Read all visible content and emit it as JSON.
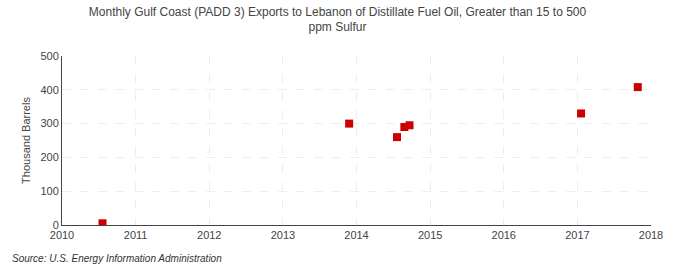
{
  "chart_data": {
    "type": "scatter",
    "title": "Monthly Gulf Coast (PADD 3) Exports to Lebanon of Distillate Fuel Oil, Greater than 15 to 500\nppm Sulfur",
    "ylabel": "Thousand Barrels",
    "annotations": [
      "Source: U.S. Energy Information Administration"
    ],
    "x": [
      2010.55,
      2013.9,
      2014.55,
      2014.65,
      2014.72,
      2017.05,
      2017.82
    ],
    "values": [
      5,
      300,
      260,
      290,
      295,
      330,
      408
    ],
    "color": "#cc0000",
    "marker": "square",
    "xlim": [
      2010,
      2018
    ],
    "xticks": [
      2010,
      2011,
      2012,
      2013,
      2014,
      2015,
      2016,
      2017,
      2018
    ],
    "ylim": [
      0,
      500
    ],
    "yticks": [
      0,
      100,
      200,
      300,
      400,
      500
    ],
    "grid": true
  }
}
